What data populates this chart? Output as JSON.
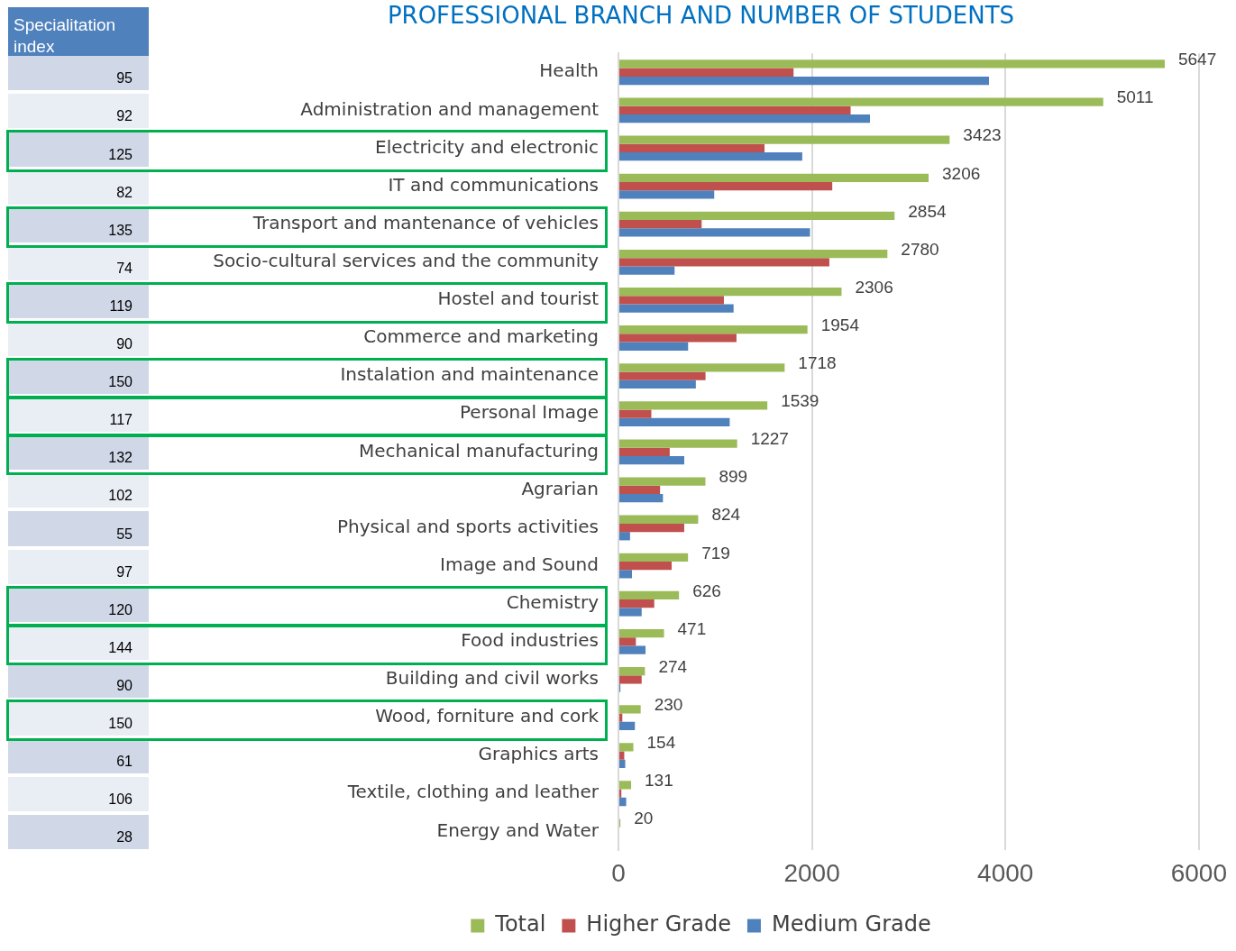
{
  "chart_data": [
    {
      "type": "other",
      "title": "Specialitation index",
      "values": [
        95,
        92,
        125,
        82,
        135,
        74,
        119,
        90,
        150,
        117,
        132,
        102,
        55,
        97,
        120,
        144,
        90,
        150,
        61,
        106,
        28
      ],
      "data_labels": true
    },
    {
      "type": "bar",
      "orientation": "horizontal",
      "title": "PROFESSIONAL BRANCH AND NUMBER OF STUDENTS",
      "categories": [
        "Health",
        "Administration and management",
        "Electricity and electronic",
        "IT and communications",
        "Transport and mantenance of vehicles",
        "Socio-cultural services and the community",
        "Hostel and tourist",
        "Commerce and marketing",
        "Instalation and maintenance",
        "Personal Image",
        "Mechanical manufacturing",
        "Agrarian",
        "Physical and sports activities",
        "Image and Sound",
        "Chemistry",
        "Food industries",
        "Building and civil works",
        "Wood, forniture and cork",
        "Graphics arts",
        "Textile, clothing and leather",
        "Energy and Water"
      ],
      "series": [
        {
          "name": "Total",
          "color": "#9bbb59",
          "values": [
            5647,
            5011,
            3423,
            3206,
            2854,
            2780,
            2306,
            1954,
            1718,
            1539,
            1227,
            899,
            824,
            719,
            626,
            471,
            274,
            230,
            154,
            131,
            20
          ],
          "value_labels": [
            "5647",
            "5011",
            "3423",
            "3206",
            "2854",
            "2780",
            "2306",
            "1954",
            "1718",
            "1539",
            "1227",
            "899",
            "824",
            "719",
            "626",
            "471",
            "274",
            "230",
            "154",
            "131",
            "20"
          ]
        },
        {
          "name": "Higher Grade",
          "color": "#c0504d",
          "values": [
            1810,
            2400,
            1510,
            2210,
            860,
            2180,
            1090,
            1220,
            900,
            340,
            530,
            430,
            680,
            550,
            370,
            180,
            240,
            40,
            60,
            30,
            null
          ]
        },
        {
          "name": "Medium Grade",
          "color": "#4f81bd",
          "values": [
            3830,
            2600,
            1900,
            990,
            1980,
            580,
            1190,
            720,
            800,
            1150,
            680,
            460,
            120,
            140,
            240,
            280,
            20,
            170,
            70,
            80,
            null
          ]
        }
      ],
      "xlim": [
        0,
        6000
      ],
      "xticks": [
        0,
        2000,
        4000,
        6000
      ],
      "grid": "x",
      "legend": "bottom"
    }
  ]
}
